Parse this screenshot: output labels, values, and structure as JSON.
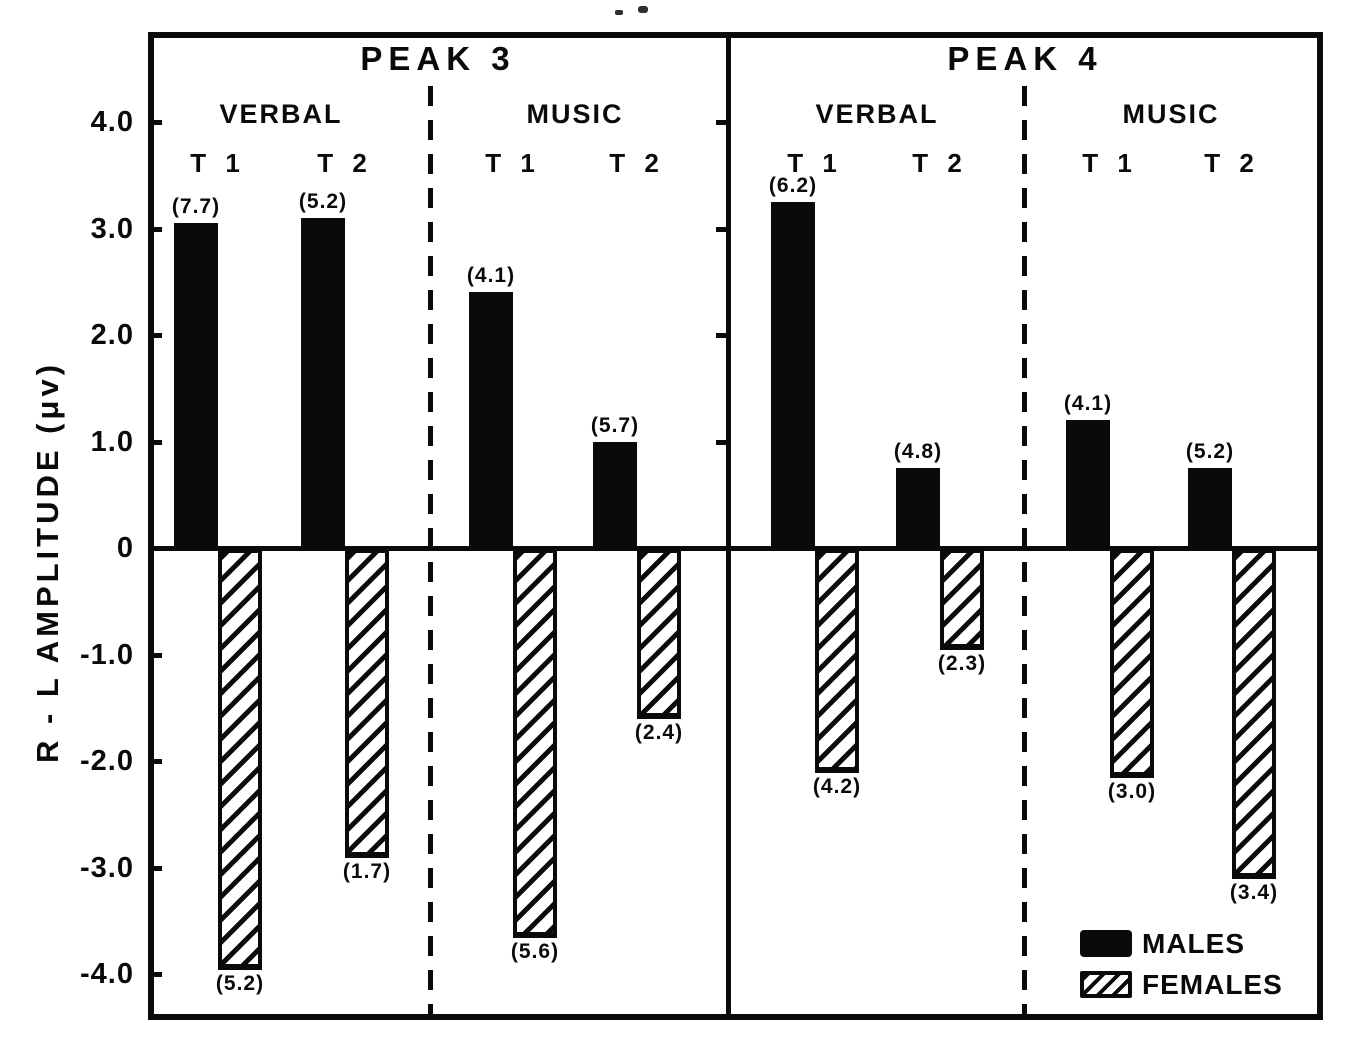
{
  "chart_data": {
    "type": "bar",
    "title": "",
    "ylabel": "R - L AMPLITUDE (μv)",
    "y_ticks": [
      {
        "label": "4.0",
        "value": 4.0
      },
      {
        "label": "3.0",
        "value": 3.0
      },
      {
        "label": "2.0",
        "value": 2.0
      },
      {
        "label": "1.0",
        "value": 1.0
      },
      {
        "label": "0",
        "value": 0.0
      },
      {
        "label": "-1.0",
        "value": -1.0
      },
      {
        "label": "-2.0",
        "value": -2.0
      },
      {
        "label": "-3.0",
        "value": -3.0
      },
      {
        "label": "-4.0",
        "value": -4.0
      }
    ],
    "ylim": [
      -4.45,
      4.85
    ],
    "grid": false,
    "series_meaning": "male bars plot positive R-L amplitude, female bars negative; parenthesized numbers are values printed at bar ends",
    "panels": [
      {
        "title": "PEAK 3",
        "sections": [
          {
            "title": "VERBAL",
            "groups": [
              {
                "label": "T 1",
                "male": 3.05,
                "male_note": "(7.7)",
                "female": -3.95,
                "female_note": "(5.2)"
              },
              {
                "label": "T 2",
                "male": 3.1,
                "male_note": "(5.2)",
                "female": -2.9,
                "female_note": "(1.7)"
              }
            ]
          },
          {
            "title": "MUSIC",
            "groups": [
              {
                "label": "T 1",
                "male": 2.4,
                "male_note": "(4.1)",
                "female": -3.65,
                "female_note": "(5.6)"
              },
              {
                "label": "T 2",
                "male": 1.0,
                "male_note": "(5.7)",
                "female": -1.6,
                "female_note": "(2.4)"
              }
            ]
          }
        ]
      },
      {
        "title": "PEAK 4",
        "sections": [
          {
            "title": "VERBAL",
            "groups": [
              {
                "label": "T 1",
                "male": 3.25,
                "male_note": "(6.2)",
                "female": -2.1,
                "female_note": "(4.2)"
              },
              {
                "label": "T 2",
                "male": 0.75,
                "male_note": "(4.8)",
                "female": -0.95,
                "female_note": "(2.3)"
              }
            ]
          },
          {
            "title": "MUSIC",
            "groups": [
              {
                "label": "T 1",
                "male": 1.2,
                "male_note": "(4.1)",
                "female": -2.15,
                "female_note": "(3.0)"
              },
              {
                "label": "T 2",
                "male": 0.75,
                "male_note": "(5.2)",
                "female": -3.1,
                "female_note": "(3.4)"
              }
            ]
          }
        ]
      }
    ],
    "legend": {
      "position": "bottom-right-inside",
      "entries": [
        {
          "label": "MALES",
          "style": "solid-black"
        },
        {
          "label": "FEMALES",
          "style": "diagonal-hatch"
        }
      ]
    },
    "colors": {
      "ink": "#0a0a0a",
      "background": "#ffffff"
    }
  }
}
